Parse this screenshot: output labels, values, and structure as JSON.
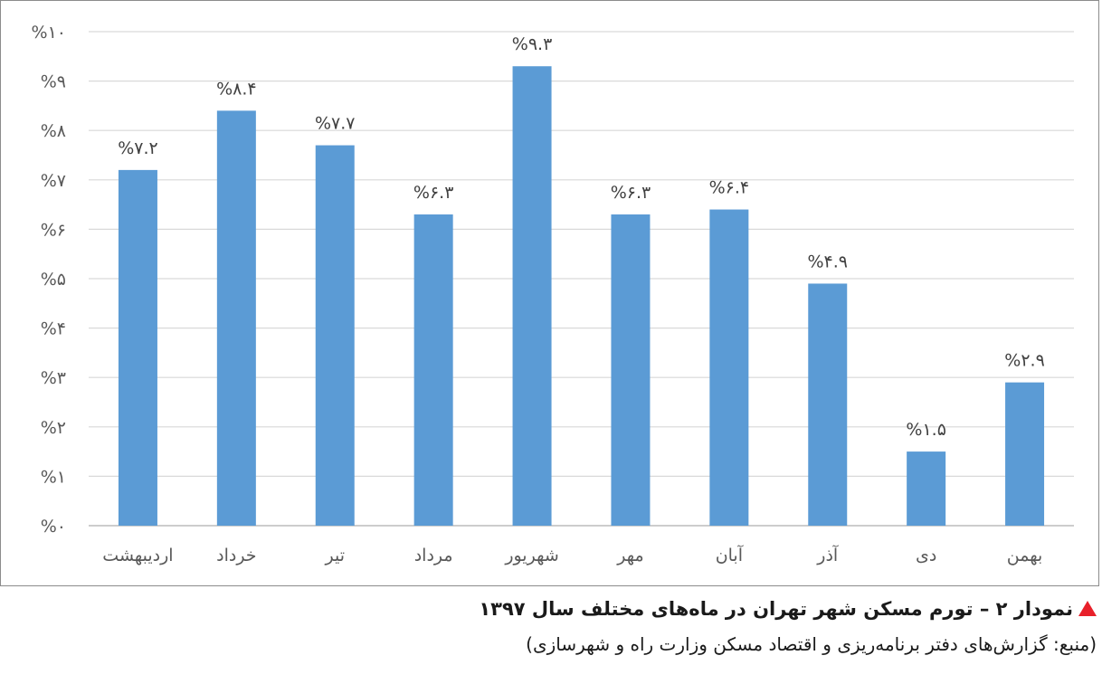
{
  "chart_data": {
    "type": "bar",
    "categories": [
      "اردیبهشت",
      "خرداد",
      "تیر",
      "مرداد",
      "شهریور",
      "مهر",
      "آبان",
      "آذر",
      "دی",
      "بهمن"
    ],
    "values": [
      7.2,
      8.4,
      7.7,
      6.3,
      9.3,
      6.3,
      6.4,
      4.9,
      1.5,
      2.9
    ],
    "data_labels": [
      "%۷.۲",
      "%۸.۴",
      "%۷.۷",
      "%۶.۳",
      "%۹.۳",
      "%۶.۳",
      "%۶.۴",
      "%۴.۹",
      "%۱.۵",
      "%۲.۹"
    ],
    "y_ticks": [
      0,
      1,
      2,
      3,
      4,
      5,
      6,
      7,
      8,
      9,
      10
    ],
    "y_tick_labels": [
      "%۰",
      "%۱",
      "%۲",
      "%۳",
      "%۴",
      "%۵",
      "%۶",
      "%۷",
      "%۸",
      "%۹",
      "%۱۰"
    ],
    "ylim": [
      0,
      10
    ],
    "grid": true,
    "legend": "none",
    "bar_color": "#5b9bd5",
    "grid_color": "#d9d9d9"
  },
  "caption": {
    "title": "نمودار ۲ – تورم مسکن شهر تهران در ماه‌های مختلف سال ۱۳۹۷",
    "source": "(منبع: گزارش‌های دفتر برنامه‌ریزی و اقتصاد مسکن وزارت راه و شهرسازی)",
    "marker_color": "#e8202a"
  }
}
